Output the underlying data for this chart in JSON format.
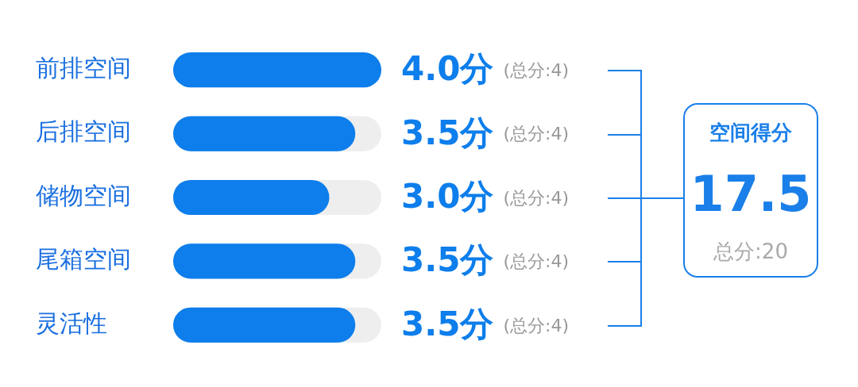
{
  "chart_data": {
    "type": "bar",
    "orientation": "horizontal",
    "categories": [
      "前排空间",
      "后排空间",
      "储物空间",
      "尾箱空间",
      "灵活性"
    ],
    "values": [
      4.0,
      3.5,
      3.0,
      3.5,
      3.5
    ],
    "color": "#0d7eeb",
    "xlim": [
      0,
      4
    ],
    "tick_labels": "y",
    "value_labels": [
      "4.0分",
      "3.5分",
      "3.0分",
      "3.5分",
      "3.5分"
    ],
    "annotations": [
      "(总分:4)",
      "(总分:4)",
      "(总分:4)",
      "(总分:4)",
      "(总分:4)",
      "空间得分",
      "17.5",
      "总分:20"
    ]
  }
}
